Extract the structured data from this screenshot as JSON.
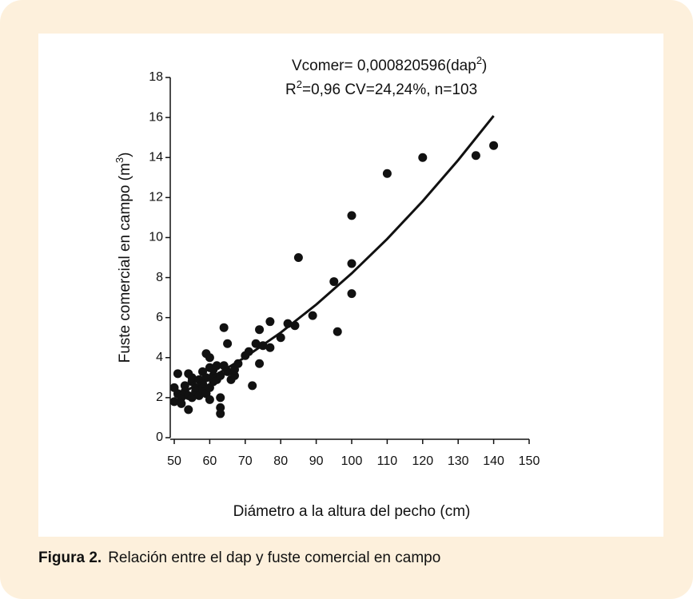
{
  "chart_data": {
    "type": "scatter",
    "annotations": [
      {
        "text": "Vcomer= 0,000820596(dap",
        "sup": "2",
        "end": ")"
      },
      {
        "text": "R",
        "sup": "2",
        "end": "=0,96  CV=24,24%, n=103"
      }
    ],
    "xlabel": "Diámetro a la altura del pecho (cm)",
    "ylabel": {
      "text": "Fuste comercial en campo (m",
      "sup": "3",
      "end": ")"
    },
    "color": "#111111",
    "x": [
      50,
      50,
      51,
      51,
      52,
      52,
      53,
      53,
      54,
      54,
      54,
      55,
      55,
      55,
      56,
      56,
      57,
      57,
      58,
      58,
      58,
      59,
      59,
      59,
      60,
      60,
      60,
      60,
      61,
      61,
      61,
      62,
      62,
      63,
      63,
      63,
      63,
      64,
      64,
      65,
      65,
      66,
      67,
      67,
      68,
      70,
      71,
      72,
      73,
      74,
      74,
      75,
      77,
      77,
      80,
      82,
      84,
      85,
      89,
      95,
      96,
      100,
      100,
      100,
      110,
      120,
      135,
      140
    ],
    "y": [
      1.8,
      2.5,
      2.2,
      3.2,
      2.0,
      1.7,
      2.3,
      2.6,
      1.4,
      2.1,
      3.2,
      2.0,
      2.8,
      3.0,
      2.3,
      2.5,
      2.1,
      2.9,
      2.4,
      3.3,
      2.7,
      3.0,
      4.2,
      2.2,
      3.5,
      2.5,
      1.9,
      4.0,
      3.1,
      2.8,
      3.4,
      2.9,
      3.6,
      1.2,
      1.5,
      2.0,
      3.1,
      5.5,
      3.6,
      3.3,
      4.7,
      2.9,
      3.1,
      3.4,
      3.7,
      4.1,
      4.3,
      2.6,
      4.7,
      5.4,
      3.7,
      4.6,
      5.8,
      4.5,
      5.0,
      5.7,
      5.6,
      9.0,
      6.1,
      7.8,
      5.3,
      11.1,
      8.7,
      7.2,
      13.2,
      14.0,
      14.1,
      14.6
    ],
    "fit": {
      "x": [
        50,
        60,
        70,
        80,
        90,
        100,
        110,
        120,
        130,
        140
      ],
      "y": [
        2.05,
        2.95,
        4.02,
        5.25,
        6.65,
        8.21,
        9.93,
        11.82,
        13.87,
        16.08
      ]
    },
    "xlim": [
      50,
      150
    ],
    "xticks": [
      50,
      60,
      70,
      80,
      90,
      100,
      110,
      120,
      130,
      140,
      150
    ],
    "ylim": [
      0,
      18
    ],
    "yticks": [
      0,
      2,
      4,
      6,
      8,
      10,
      12,
      14,
      16,
      18
    ]
  },
  "caption": {
    "label": "Figura 2.",
    "text": "Relación entre el dap y fuste comercial en campo"
  }
}
